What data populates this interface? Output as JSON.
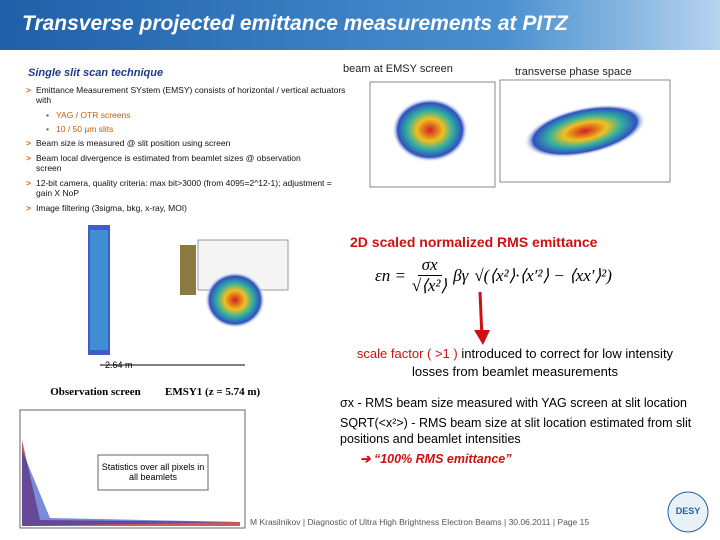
{
  "header": {
    "title": "Transverse projected emittance measurements at PITZ"
  },
  "left": {
    "heading": "Single slit scan technique",
    "bullets": [
      "Emittance Measurement SYstem (EMSY) consists of horizontal / vertical actuators with",
      "Beam size is measured @ slit position using screen",
      "Beam local divergence is estimated from beamlet sizes @ observation screen",
      "12-bit camera, quality criteria: max bit>3000 (from 4095=2^12-1); adjustment = gain X NoP",
      "Image filtering (3sigma, bkg, x-ray, MOI)"
    ],
    "subbullets": [
      "YAG / OTR screens",
      "10 / 50 µm slits"
    ]
  },
  "images": {
    "beam_caption": "beam at EMSY screen",
    "phase_caption": "transverse phase space"
  },
  "setup": {
    "distance": "2.64 m",
    "observation": "Observation screen",
    "emsy": "EMSY1 (z = 5.74 m)",
    "statistics": "Statistics over all pixels in all beamlets"
  },
  "right": {
    "emittance_title": "2D scaled normalized RMS emittance",
    "formula": {
      "lhs": "εn =",
      "factor_num": "σx",
      "factor_den": "√⟨x²⟩",
      "beta_gamma": "βγ",
      "root": "√(⟨x²⟩·⟨x′²⟩ − ⟨xx′⟩²)"
    },
    "scale_highlight": "scale factor ( >1 )",
    "scale_rest": "introduced to correct for low intensity losses from beamlet measurements",
    "notes": [
      "σx - RMS beam size measured with YAG screen at slit location",
      "SQRT(<x²>) - RMS beam size at slit location estimated from slit positions and beamlet intensities",
      "➔ “100% RMS emittance”"
    ]
  },
  "footer": {
    "text": "M Krasilnikov | Diagnostic of Ultra High Brightness Electron Beams | 30.06.2011 | Page 15",
    "logo": "DESY"
  }
}
